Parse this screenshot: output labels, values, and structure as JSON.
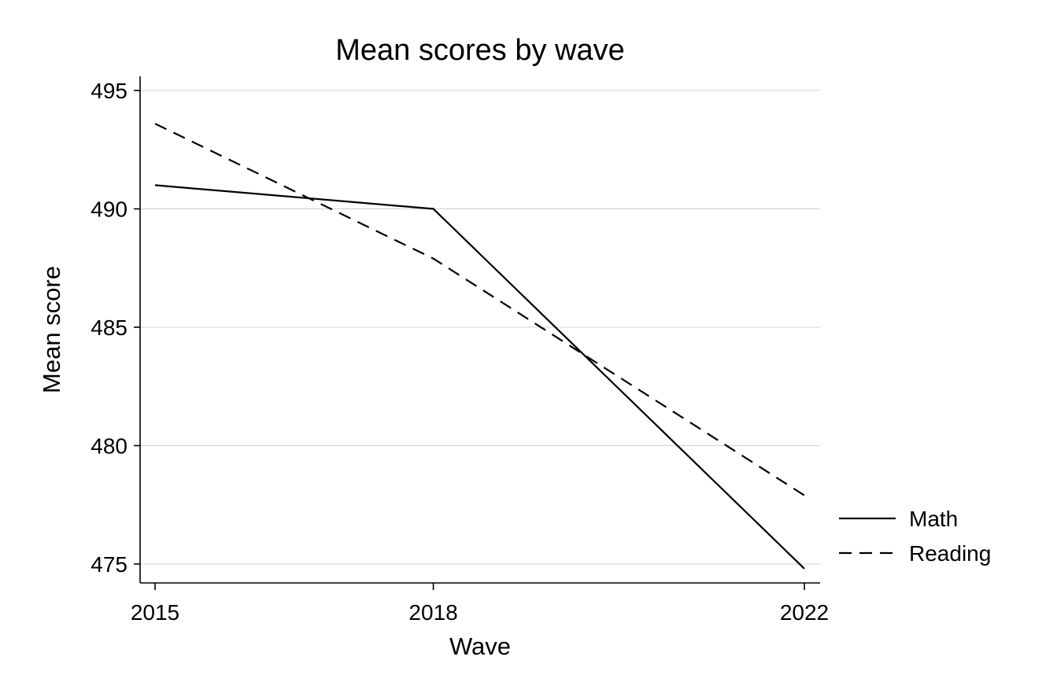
{
  "chart_data": {
    "type": "line",
    "title": "Mean scores by wave",
    "xlabel": "Wave",
    "ylabel": "Mean score",
    "x": [
      2015,
      2018,
      2022
    ],
    "x_ticks": [
      "2015",
      "2018",
      "2022"
    ],
    "y_ticks": [
      "475",
      "480",
      "485",
      "490",
      "495"
    ],
    "ylim": [
      474.2,
      495.6
    ],
    "grid": "horizontal",
    "legend_position": "right",
    "series": [
      {
        "name": "Math",
        "values": [
          491.0,
          490.0,
          474.8
        ],
        "line_style": "solid",
        "color": "#000000"
      },
      {
        "name": "Reading",
        "values": [
          493.6,
          487.9,
          477.9
        ],
        "line_style": "dashed",
        "color": "#000000"
      }
    ]
  }
}
